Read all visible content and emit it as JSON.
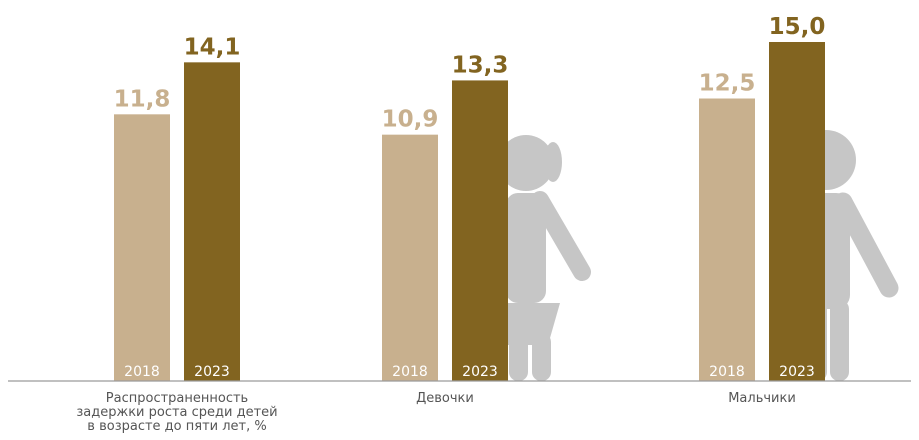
{
  "chart_data": {
    "type": "bar",
    "categories": [
      "Распространенность\nзадержки роста среди детей\nв возрасте до пяти лет, %",
      "Девочки",
      "Мальчики"
    ],
    "series": [
      {
        "name": "2018",
        "values": [
          11.8,
          10.9,
          12.5
        ],
        "labels": [
          "11,8",
          "10,9",
          "12,5"
        ],
        "color": "#c8b08e"
      },
      {
        "name": "2023",
        "values": [
          14.1,
          13.3,
          15.0
        ],
        "labels": [
          "14,1",
          "13,3",
          "15,0"
        ],
        "color": "#826420"
      }
    ],
    "ylim": [
      0,
      16
    ],
    "icons": [
      "girl-silhouette-icon",
      "boy-silhouette-icon"
    ],
    "icon_color": "#c6c6c6",
    "axis_color": "#9a9a9a"
  }
}
